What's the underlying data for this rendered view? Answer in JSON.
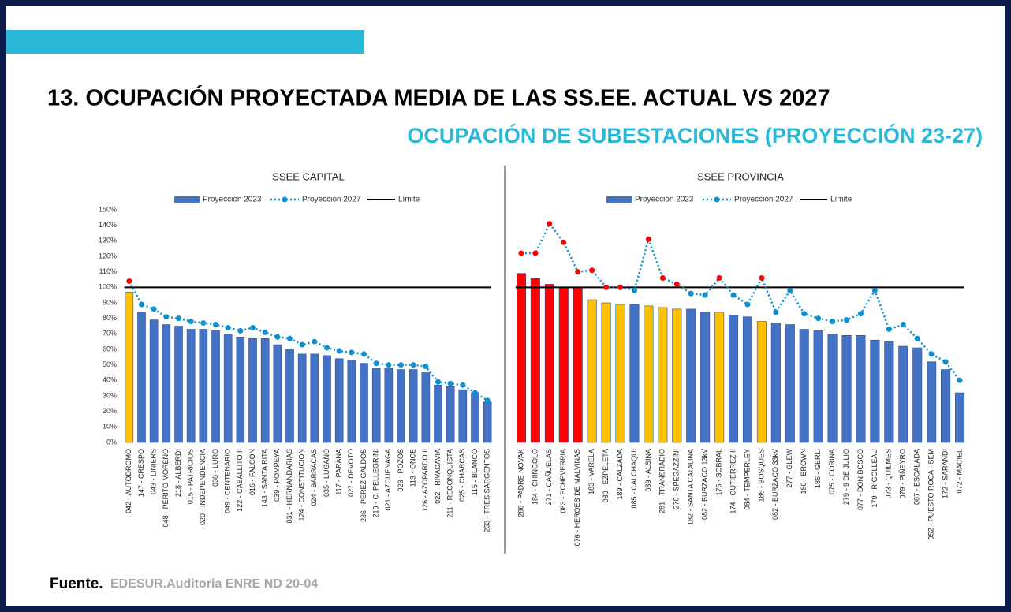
{
  "header": {
    "title": "13. OCUPACIÓN PROYECTADA MEDIA DE LAS SS.EE. ACTUAL VS 2027",
    "subtitle": "OCUPACIÓN DE SUBESTACIONES (PROYECCIÓN 23-27)"
  },
  "footer": {
    "label": "Fuente.",
    "source": "EDESUR.Auditoria ENRE ND 20-04"
  },
  "chart_data": [
    {
      "type": "bar_line",
      "title": "SSEE CAPITAL",
      "categories": [
        "042 - AUTODROMO",
        "147 - CRESPO",
        "043 - LINIERS",
        "048 - PERITO MORENO",
        "218 - ALBERDI",
        "015 - PATRICIOS",
        "020 - INDEPENDENCIA",
        "038 - LURO",
        "049 - CENTENARIO",
        "122 - CABALLITO II",
        "016 - FALCON",
        "143 - SANTA RITA",
        "039 - POMPEYA",
        "031 - HERNANDARIAS",
        "124 - CONSTITUCION",
        "024 - BARRACAS",
        "035 - LUGANO",
        "117 - PARANA",
        "027 - DEVOTO",
        "236 - PEREZ GALDOS",
        "210 - C. PELLEGRINI",
        "021 - AZCUENAGA",
        "023 - POZOS",
        "113 - ONCE",
        "126 - AZOPARDO II",
        "022 - RIVADAVIA",
        "211 - RECONQUISTA",
        "025 - CHARCAS",
        "115 - BLANCO",
        "233 - TRES SARGENTOS"
      ],
      "series": [
        {
          "name": "Proyección 2023",
          "color": "#4472c4",
          "values": [
            97,
            84,
            79,
            76,
            75,
            73,
            73,
            72,
            70,
            68,
            67,
            67,
            63,
            60,
            57,
            57,
            56,
            54,
            53,
            51,
            48,
            48,
            47,
            47,
            45,
            37,
            36,
            34,
            32,
            26
          ],
          "colors": [
            "#ffc000",
            "#4472c4",
            "#4472c4",
            "#4472c4",
            "#4472c4",
            "#4472c4",
            "#4472c4",
            "#4472c4",
            "#4472c4",
            "#4472c4",
            "#4472c4",
            "#4472c4",
            "#4472c4",
            "#4472c4",
            "#4472c4",
            "#4472c4",
            "#4472c4",
            "#4472c4",
            "#4472c4",
            "#4472c4",
            "#4472c4",
            "#4472c4",
            "#4472c4",
            "#4472c4",
            "#4472c4",
            "#4472c4",
            "#4472c4",
            "#4472c4",
            "#4472c4",
            "#4472c4"
          ]
        },
        {
          "name": "Proyección 2027",
          "color": "#0e8fcf",
          "values": [
            104,
            89,
            86,
            81,
            80,
            78,
            77,
            76,
            74,
            72,
            74,
            71,
            68,
            67,
            63,
            65,
            61,
            59,
            58,
            57,
            51,
            50,
            50,
            50,
            49,
            39,
            38,
            37,
            32,
            27
          ],
          "marker_colors": [
            "#ff0000",
            "#0e8fcf",
            "#0e8fcf",
            "#0e8fcf",
            "#0e8fcf",
            "#0e8fcf",
            "#0e8fcf",
            "#0e8fcf",
            "#0e8fcf",
            "#0e8fcf",
            "#0e8fcf",
            "#0e8fcf",
            "#0e8fcf",
            "#0e8fcf",
            "#0e8fcf",
            "#0e8fcf",
            "#0e8fcf",
            "#0e8fcf",
            "#0e8fcf",
            "#0e8fcf",
            "#0e8fcf",
            "#0e8fcf",
            "#0e8fcf",
            "#0e8fcf",
            "#0e8fcf",
            "#0e8fcf",
            "#0e8fcf",
            "#0e8fcf",
            "#0e8fcf",
            "#0e8fcf"
          ]
        },
        {
          "name": "Límite",
          "color": "#000000",
          "value": 100
        }
      ],
      "ylim": [
        0,
        150
      ],
      "yticks": [
        {
          "value": 0,
          "label": "0%"
        },
        {
          "value": 10,
          "label": "10%"
        },
        {
          "value": 20,
          "label": "20%"
        },
        {
          "value": 30,
          "label": "30%"
        },
        {
          "value": 40,
          "label": "40%"
        },
        {
          "value": 50,
          "label": "50%"
        },
        {
          "value": 60,
          "label": "60%"
        },
        {
          "value": 70,
          "label": "70%"
        },
        {
          "value": 80,
          "label": "80%"
        },
        {
          "value": 90,
          "label": "90%"
        },
        {
          "value": 100,
          "label": "100%"
        },
        {
          "value": 110,
          "label": "110%"
        },
        {
          "value": 120,
          "label": "120%"
        },
        {
          "value": 130,
          "label": "130%"
        },
        {
          "value": 140,
          "label": "140%"
        },
        {
          "value": 150,
          "label": "150%"
        }
      ]
    },
    {
      "type": "bar_line",
      "title": "SSEE PROVINCIA",
      "categories": [
        "286 - PADRE NOVAK",
        "184 - CHINGOLO",
        "271 - CAÑUELAS",
        "083 - ECHEVERRIA",
        "076 - HEROES DE MALVINAS",
        "183 - VARELA",
        "080 - EZPELETA",
        "189 - CALZADA",
        "085 - CALCHAQUI",
        "089 - ALSINA",
        "281 - TRANSRADIO",
        "270 - SPEGAZZINI",
        "182 - SANTA CATALINA",
        "082 - BURZACO 13kV",
        "175 - SOBRAL",
        "174 - GUTIERREZ II",
        "084 - TEMPERLEY",
        "185 - BOSQUES",
        "082 - BURZACO 33kV",
        "277 - GLEW",
        "180 - BROWN",
        "186 - GERLI",
        "075 - CORINA",
        "279 - 9 DE JULIO",
        "077 - DON BOSCO",
        "179 - RIGOLLEAU",
        "073 - QUILMES",
        "079 - PIÑEYRO",
        "087 - ESCALADA",
        "952 - PUESTO ROCA - SEM",
        "172 - SARANDI",
        "072 - MACIEL"
      ],
      "series": [
        {
          "name": "Proyección 2023",
          "color": "#4472c4",
          "values": [
            109,
            106,
            102,
            100,
            100,
            92,
            90,
            89,
            89,
            88,
            87,
            86,
            86,
            84,
            84,
            82,
            81,
            78,
            77,
            76,
            73,
            72,
            70,
            69,
            69,
            66,
            65,
            62,
            61,
            52,
            47,
            32
          ],
          "colors": [
            "#ff0000",
            "#ff0000",
            "#ff0000",
            "#ff0000",
            "#ff0000",
            "#ffc000",
            "#ffc000",
            "#ffc000",
            "#4472c4",
            "#ffc000",
            "#ffc000",
            "#ffc000",
            "#4472c4",
            "#4472c4",
            "#ffc000",
            "#4472c4",
            "#4472c4",
            "#ffc000",
            "#4472c4",
            "#4472c4",
            "#4472c4",
            "#4472c4",
            "#4472c4",
            "#4472c4",
            "#4472c4",
            "#4472c4",
            "#4472c4",
            "#4472c4",
            "#4472c4",
            "#4472c4",
            "#4472c4",
            "#4472c4"
          ]
        },
        {
          "name": "Proyección 2027",
          "color": "#0e8fcf",
          "values": [
            122,
            122,
            141,
            129,
            110,
            111,
            100,
            100,
            98,
            131,
            106,
            102,
            96,
            95,
            106,
            95,
            89,
            106,
            84,
            98,
            83,
            80,
            78,
            79,
            83,
            98,
            73,
            76,
            67,
            57,
            52,
            40
          ],
          "marker_colors": [
            "#ff0000",
            "#ff0000",
            "#ff0000",
            "#ff0000",
            "#ff0000",
            "#ff0000",
            "#ff0000",
            "#ff0000",
            "#0e8fcf",
            "#ff0000",
            "#ff0000",
            "#ff0000",
            "#0e8fcf",
            "#0e8fcf",
            "#ff0000",
            "#0e8fcf",
            "#0e8fcf",
            "#ff0000",
            "#0e8fcf",
            "#0e8fcf",
            "#0e8fcf",
            "#0e8fcf",
            "#0e8fcf",
            "#0e8fcf",
            "#0e8fcf",
            "#0e8fcf",
            "#0e8fcf",
            "#0e8fcf",
            "#0e8fcf",
            "#0e8fcf",
            "#0e8fcf",
            "#0e8fcf"
          ]
        },
        {
          "name": "Límite",
          "color": "#000000",
          "value": 100
        }
      ],
      "ylim": [
        0,
        150
      ]
    }
  ]
}
